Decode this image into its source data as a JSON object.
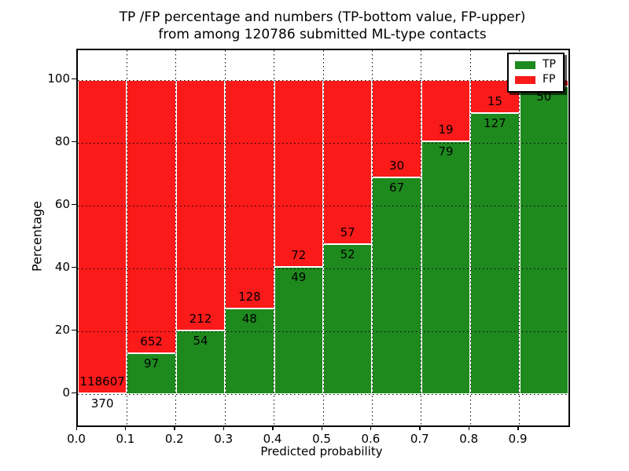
{
  "title": {
    "line1": "TP /FP percentage and numbers (TP-bottom value, FP-upper)",
    "line2": "from among 120786 submitted ML-type contacts"
  },
  "axes": {
    "xlabel": "Predicted probability",
    "ylabel": "Percentage"
  },
  "legend": {
    "position": "upper right",
    "entries": [
      {
        "label": "TP",
        "color": "#1e8a1e"
      },
      {
        "label": "FP",
        "color": "#fa1a1a"
      }
    ]
  },
  "chart_data": {
    "type": "bar",
    "stacked": true,
    "normalized_to_100_percent": true,
    "title": "TP /FP percentage and numbers (TP-bottom value, FP-upper) from among 120786 submitted ML-type contacts",
    "xlabel": "Predicted probability",
    "ylabel": "Percentage",
    "xlim": [
      0.0,
      1.0
    ],
    "ylim": [
      -10,
      109
    ],
    "bin_width": 0.1,
    "categories": [
      "0.0-0.1",
      "0.1-0.2",
      "0.2-0.3",
      "0.3-0.4",
      "0.4-0.5",
      "0.5-0.6",
      "0.6-0.7",
      "0.7-0.8",
      "0.8-0.9",
      "0.9-1.0"
    ],
    "series": [
      {
        "name": "TP",
        "color": "#1e8a1e",
        "counts": [
          370,
          97,
          54,
          48,
          49,
          52,
          67,
          79,
          127,
          50
        ]
      },
      {
        "name": "FP",
        "color": "#fa1a1a",
        "counts": [
          118607,
          652,
          212,
          128,
          72,
          57,
          30,
          19,
          15,
          null
        ]
      }
    ],
    "tp_percent": [
      0.31,
      12.95,
      20.3,
      27.27,
      40.5,
      47.71,
      69.07,
      80.61,
      89.44,
      98.04
    ],
    "bar_labels": [
      {
        "fp": "118607",
        "tp": "370"
      },
      {
        "fp": "652",
        "tp": "97"
      },
      {
        "fp": "212",
        "tp": "54"
      },
      {
        "fp": "128",
        "tp": "48"
      },
      {
        "fp": "72",
        "tp": "49"
      },
      {
        "fp": "57",
        "tp": "52"
      },
      {
        "fp": "30",
        "tp": "67"
      },
      {
        "fp": "19",
        "tp": "79"
      },
      {
        "fp": "15",
        "tp": "127"
      },
      {
        "fp": "",
        "tp": "50"
      }
    ],
    "xticks": [
      "0.0",
      "0.1",
      "0.2",
      "0.3",
      "0.4",
      "0.5",
      "0.6",
      "0.7",
      "0.8",
      "0.9"
    ],
    "yticks": [
      "0",
      "20",
      "40",
      "60",
      "80",
      "100"
    ],
    "grid": "dotted",
    "legend_position": "upper right"
  }
}
